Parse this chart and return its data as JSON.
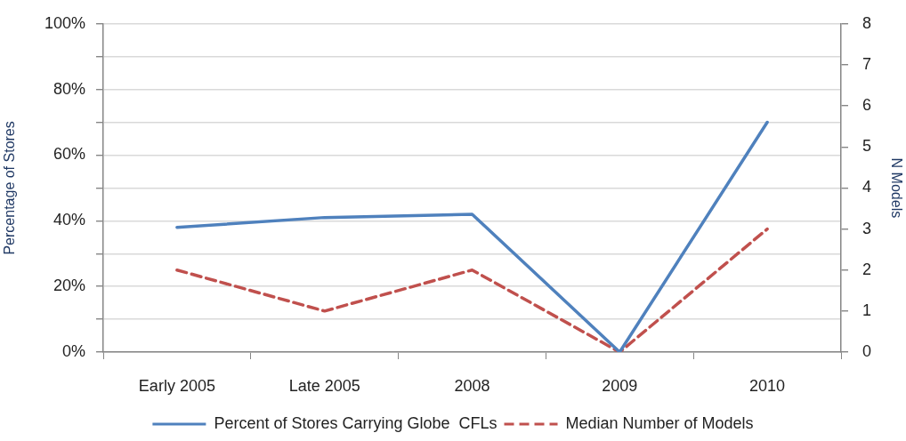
{
  "chart_data": {
    "type": "line",
    "categories": [
      "Early 2005",
      "Late 2005",
      "2008",
      "2009",
      "2010"
    ],
    "series": [
      {
        "name": "Percent of Stores Carrying Globe  CFLs",
        "color": "#4f81bd",
        "line_style": "solid",
        "values": [
          38,
          41,
          42,
          0,
          70
        ]
      },
      {
        "name": "Median Number of Models",
        "color": "#c0504d",
        "line_style": "dashed",
        "axis": "y2",
        "values": [
          2,
          1,
          2,
          0,
          3
        ]
      }
    ],
    "ylabel": "Percentage of Stores",
    "y2label": "N Models",
    "ylim": [
      0,
      100
    ],
    "yticks": [
      {
        "value": 0,
        "label": "0%"
      },
      {
        "value": 10,
        "label": null
      },
      {
        "value": 20,
        "label": "20%"
      },
      {
        "value": 30,
        "label": null
      },
      {
        "value": 40,
        "label": "40%"
      },
      {
        "value": 50,
        "label": null
      },
      {
        "value": 60,
        "label": "60%"
      },
      {
        "value": 70,
        "label": null
      },
      {
        "value": 80,
        "label": "80%"
      },
      {
        "value": 90,
        "label": null
      },
      {
        "value": 100,
        "label": "100%"
      }
    ],
    "y2lim": [
      0,
      8
    ],
    "y2ticks": [
      0,
      1,
      2,
      3,
      4,
      5,
      6,
      7,
      8
    ],
    "grid": "y",
    "legend": "bottom",
    "marker": "none"
  }
}
